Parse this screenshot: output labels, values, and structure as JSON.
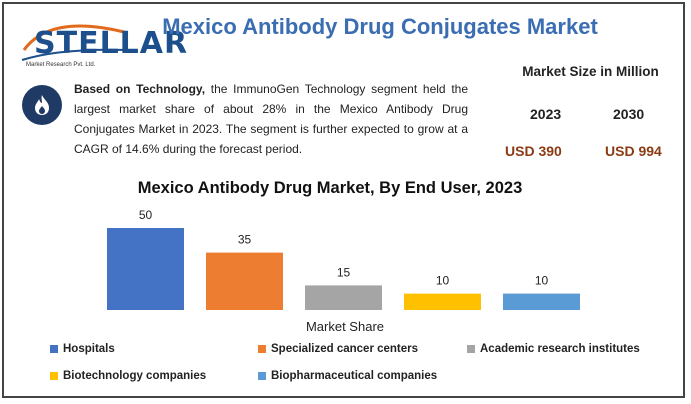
{
  "header": {
    "title": "Mexico Antibody Drug Conjugates Market",
    "logo_text": "STELLAR",
    "logo_subtext": "Market Research Pvt. Ltd."
  },
  "summary": {
    "lead": "Based on Technology,",
    "text": " the ImmunoGen Technology segment held the largest market share of about 28% in the Mexico Antibody Drug Conjugates Market in 2023. The segment is further expected to grow at a CAGR of 14.6% during the forecast period."
  },
  "market_size": {
    "title": "Market Size in Million",
    "years": [
      "2023",
      "2030"
    ],
    "values": [
      "USD 390",
      "USD 994"
    ]
  },
  "colors": {
    "title": "#3b6db3",
    "value_text": "#8b3a12",
    "badge": "#1f3a64"
  },
  "icons": {
    "badge": "flame-icon"
  },
  "chart_data": {
    "type": "bar",
    "title": "Mexico Antibody Drug Market, By End User, 2023",
    "xlabel": "Market Share",
    "ylabel": "",
    "ylim": [
      0,
      50
    ],
    "grid": false,
    "legend_position": "bottom",
    "categories": [
      "Hospitals",
      "Specialized cancer centers",
      "Academic research institutes",
      "Biotechnology companies",
      "Biopharmaceutical companies"
    ],
    "values": [
      50,
      35,
      15,
      10,
      10
    ],
    "colors": [
      "#4472c4",
      "#ed7d31",
      "#a5a5a5",
      "#ffc000",
      "#5b9bd5"
    ]
  }
}
